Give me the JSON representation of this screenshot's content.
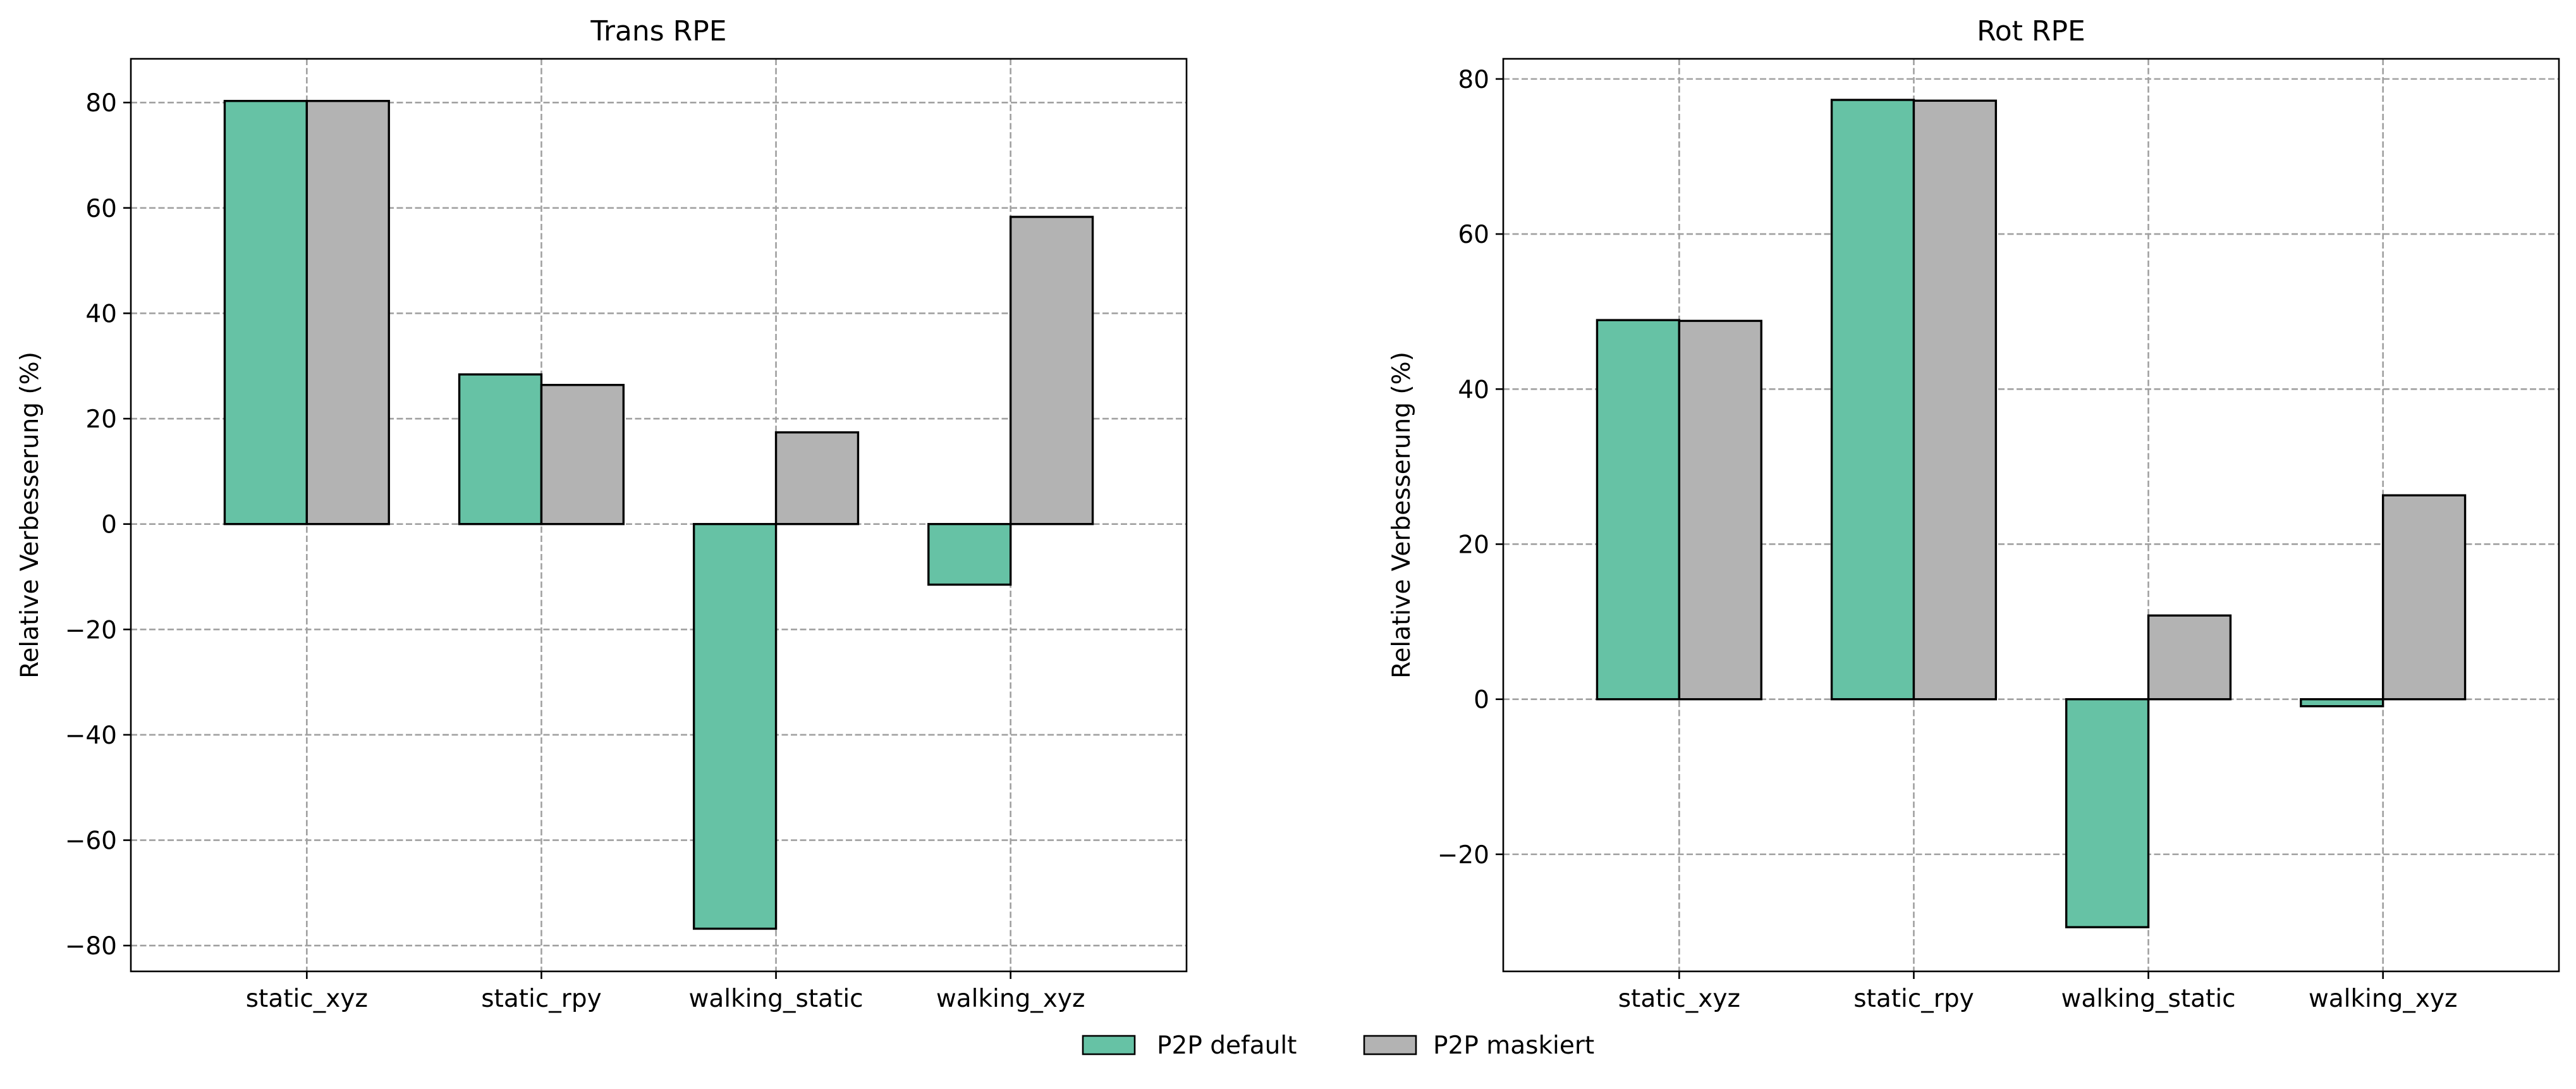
{
  "chart_data": [
    {
      "type": "bar",
      "title": "Trans RPE",
      "xlabel": "",
      "ylabel": "Relative Verbesserung (%)",
      "categories": [
        "static_xyz",
        "static_rpy",
        "walking_static",
        "walking_xyz"
      ],
      "series": [
        {
          "name": "P2P default",
          "color": "#66c2a5",
          "values": [
            80.3,
            28.4,
            -76.8,
            -11.5
          ]
        },
        {
          "name": "P2P maskiert",
          "color": "#b3b3b3",
          "values": [
            80.3,
            26.4,
            17.4,
            58.3
          ]
        }
      ],
      "ylim": [
        -84.9,
        88.3
      ],
      "yticks": [
        -80,
        -60,
        -40,
        -20,
        0,
        20,
        40,
        60,
        80
      ],
      "grid": true
    },
    {
      "type": "bar",
      "title": "Rot RPE",
      "xlabel": "",
      "ylabel": "Relative Verbesserung (%)",
      "categories": [
        "static_xyz",
        "static_rpy",
        "walking_static",
        "walking_xyz"
      ],
      "series": [
        {
          "name": "P2P default",
          "color": "#66c2a5",
          "values": [
            48.9,
            77.3,
            -29.4,
            -0.9
          ]
        },
        {
          "name": "P2P maskiert",
          "color": "#b3b3b3",
          "values": [
            48.8,
            77.2,
            10.8,
            26.3
          ]
        }
      ],
      "ylim": [
        -35.1,
        82.6
      ],
      "yticks": [
        -20,
        0,
        20,
        40,
        60,
        80
      ],
      "grid": true
    }
  ],
  "legend": {
    "placement": "bottom-center",
    "items": [
      {
        "label": "P2P default",
        "color": "#66c2a5"
      },
      {
        "label": "P2P maskiert",
        "color": "#b3b3b3"
      }
    ]
  }
}
